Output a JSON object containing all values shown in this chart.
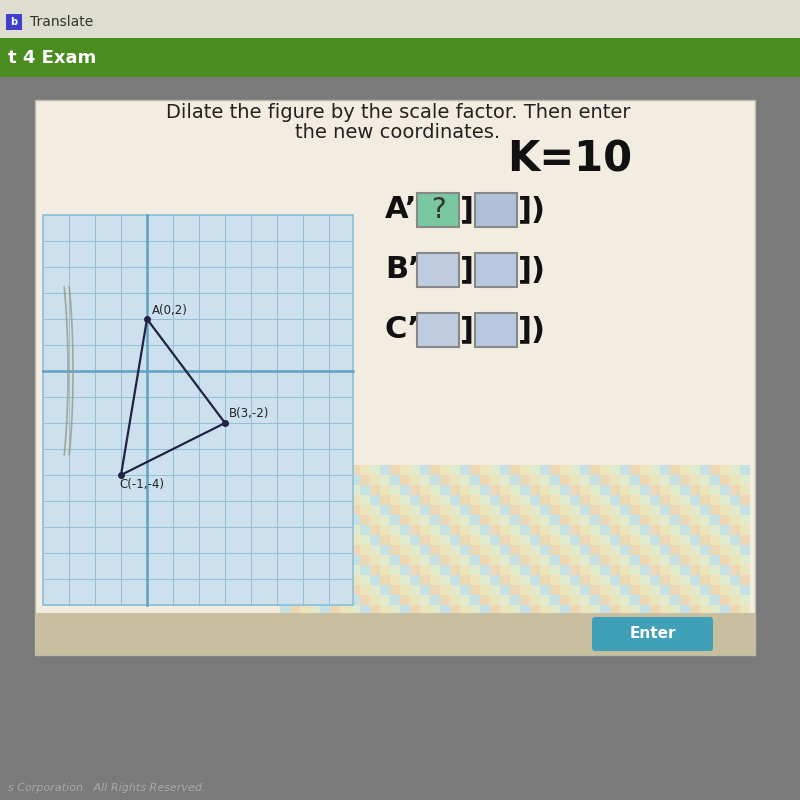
{
  "bg_outer": "#888888",
  "bg_top_bar": "#e8e8e0",
  "bg_green_bar": "#4a8c20",
  "bg_card": "#f2ede0",
  "bg_bottom_strip": "#c8bfa0",
  "title_line1": "Dilate the figure by the scale factor. Then enter",
  "title_line2": "the new coordinates.",
  "title_fontsize": 14,
  "grid_bg": "#cce0ee",
  "grid_line_color": "#90c0d8",
  "axis_line_color": "#60a0c0",
  "triangle_color": "#222244",
  "curve_color": "#888880",
  "point_A": [
    0,
    2
  ],
  "point_B": [
    3,
    -2
  ],
  "point_C": [
    -1,
    -4
  ],
  "label_A": "A(0,2)",
  "label_B": "B(3,-2)",
  "label_C": "C(-1,-4)",
  "k_text": "K=10",
  "k_fontsize": 30,
  "box_color_question": "#7ac8a0",
  "box_color_blank_A2": "#b0c0d8",
  "box_color_blank_B1": "#c0cce0",
  "box_color_blank_B2": "#b8c8e0",
  "box_color_blank_C1": "#c0cce0",
  "box_color_blank_C2": "#b8c8e0",
  "enter_bg": "#40a0b8",
  "enter_text": "Enter",
  "top_bar_text": "Translate",
  "green_bar_text": "t 4 Exam",
  "footer_text": "s Corporation.  All Rights Reserved.",
  "checkered_color1": "#a0d8e8",
  "checkered_color2": "#e8c890"
}
